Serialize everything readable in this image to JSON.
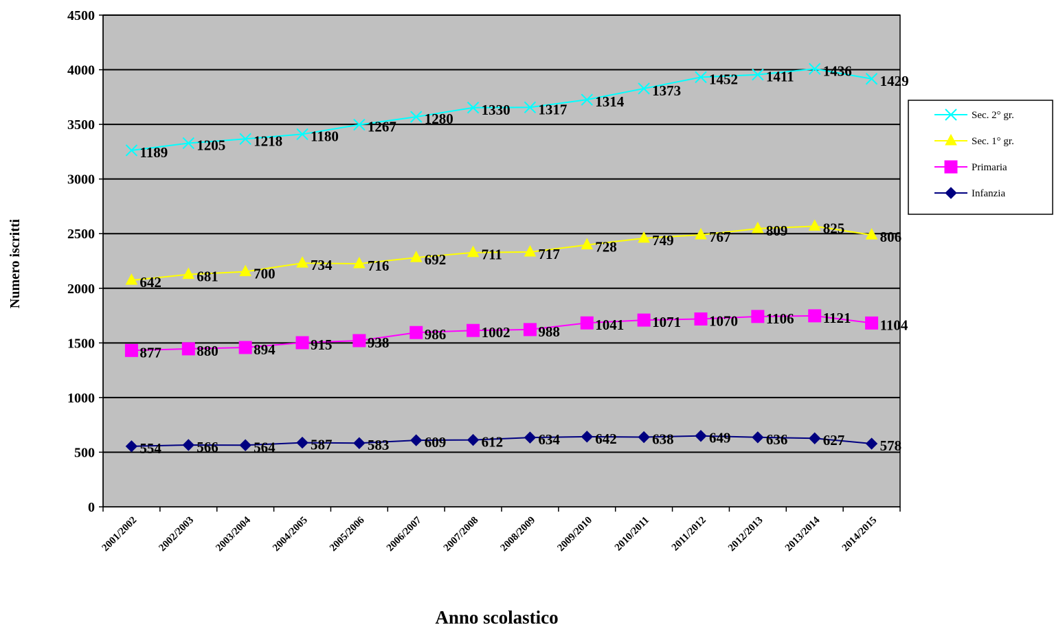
{
  "chart_data": {
    "type": "line",
    "title": "",
    "xlabel": "Anno scolastico",
    "ylabel": "Numero iscritti",
    "ylim": [
      0,
      4500
    ],
    "yticks": [
      0,
      500,
      1000,
      1500,
      2000,
      2500,
      3000,
      3500,
      4000,
      4500
    ],
    "grid": "horizontal",
    "plot_background": "#c0c0c0",
    "legend_position": "right",
    "categories": [
      "2001/2002",
      "2002/2003",
      "2003/2004",
      "2004/2005",
      "2005/2006",
      "2006/2007",
      "2007/2008",
      "2008/2009",
      "2009/2010",
      "2010/2011",
      "2011/2012",
      "2012/2013",
      "2013/2014",
      "2014/2015"
    ],
    "series": [
      {
        "name": "Sec. 2° gr.",
        "color": "#00ffff",
        "marker": "x",
        "values": [
          3262,
          3328,
          3367,
          3410,
          3497,
          3569,
          3653,
          3656,
          3726,
          3828,
          3932,
          3955,
          4008,
          3917
        ],
        "labels": [
          "1189",
          "1205",
          "1218",
          "1180",
          "1267",
          "1280",
          "1330",
          "1317",
          "1314",
          "1373",
          "1452",
          "1411",
          "1436",
          "1429"
        ]
      },
      {
        "name": "Sec. 1° gr.",
        "color": "#ffff00",
        "marker": "triangle",
        "values": [
          2073,
          2127,
          2152,
          2230,
          2225,
          2281,
          2327,
          2332,
          2397,
          2458,
          2489,
          2546,
          2568,
          2488
        ],
        "labels": [
          "642",
          "681",
          "700",
          "734",
          "716",
          "692",
          "711",
          "717",
          "728",
          "749",
          "767",
          "809",
          "825",
          "806"
        ]
      },
      {
        "name": "Primaria",
        "color": "#ff00ff",
        "marker": "square",
        "values": [
          1431,
          1446,
          1458,
          1502,
          1521,
          1595,
          1614,
          1622,
          1683,
          1709,
          1719,
          1742,
          1748,
          1682
        ],
        "labels": [
          "877",
          "880",
          "894",
          "915",
          "938",
          "986",
          "1002",
          "988",
          "1041",
          "1071",
          "1070",
          "1106",
          "1121",
          "1104"
        ]
      },
      {
        "name": "Infanzia",
        "color": "#000080",
        "marker": "diamond",
        "values": [
          554,
          566,
          564,
          587,
          583,
          609,
          612,
          634,
          642,
          638,
          649,
          636,
          627,
          578
        ],
        "labels": [
          "554",
          "566",
          "564",
          "587",
          "583",
          "609",
          "612",
          "634",
          "642",
          "638",
          "649",
          "636",
          "627",
          "578"
        ]
      }
    ],
    "legend_order": [
      "Sec. 2° gr.",
      "Sec. 1° gr.",
      "Primaria",
      "Infanzia"
    ]
  }
}
